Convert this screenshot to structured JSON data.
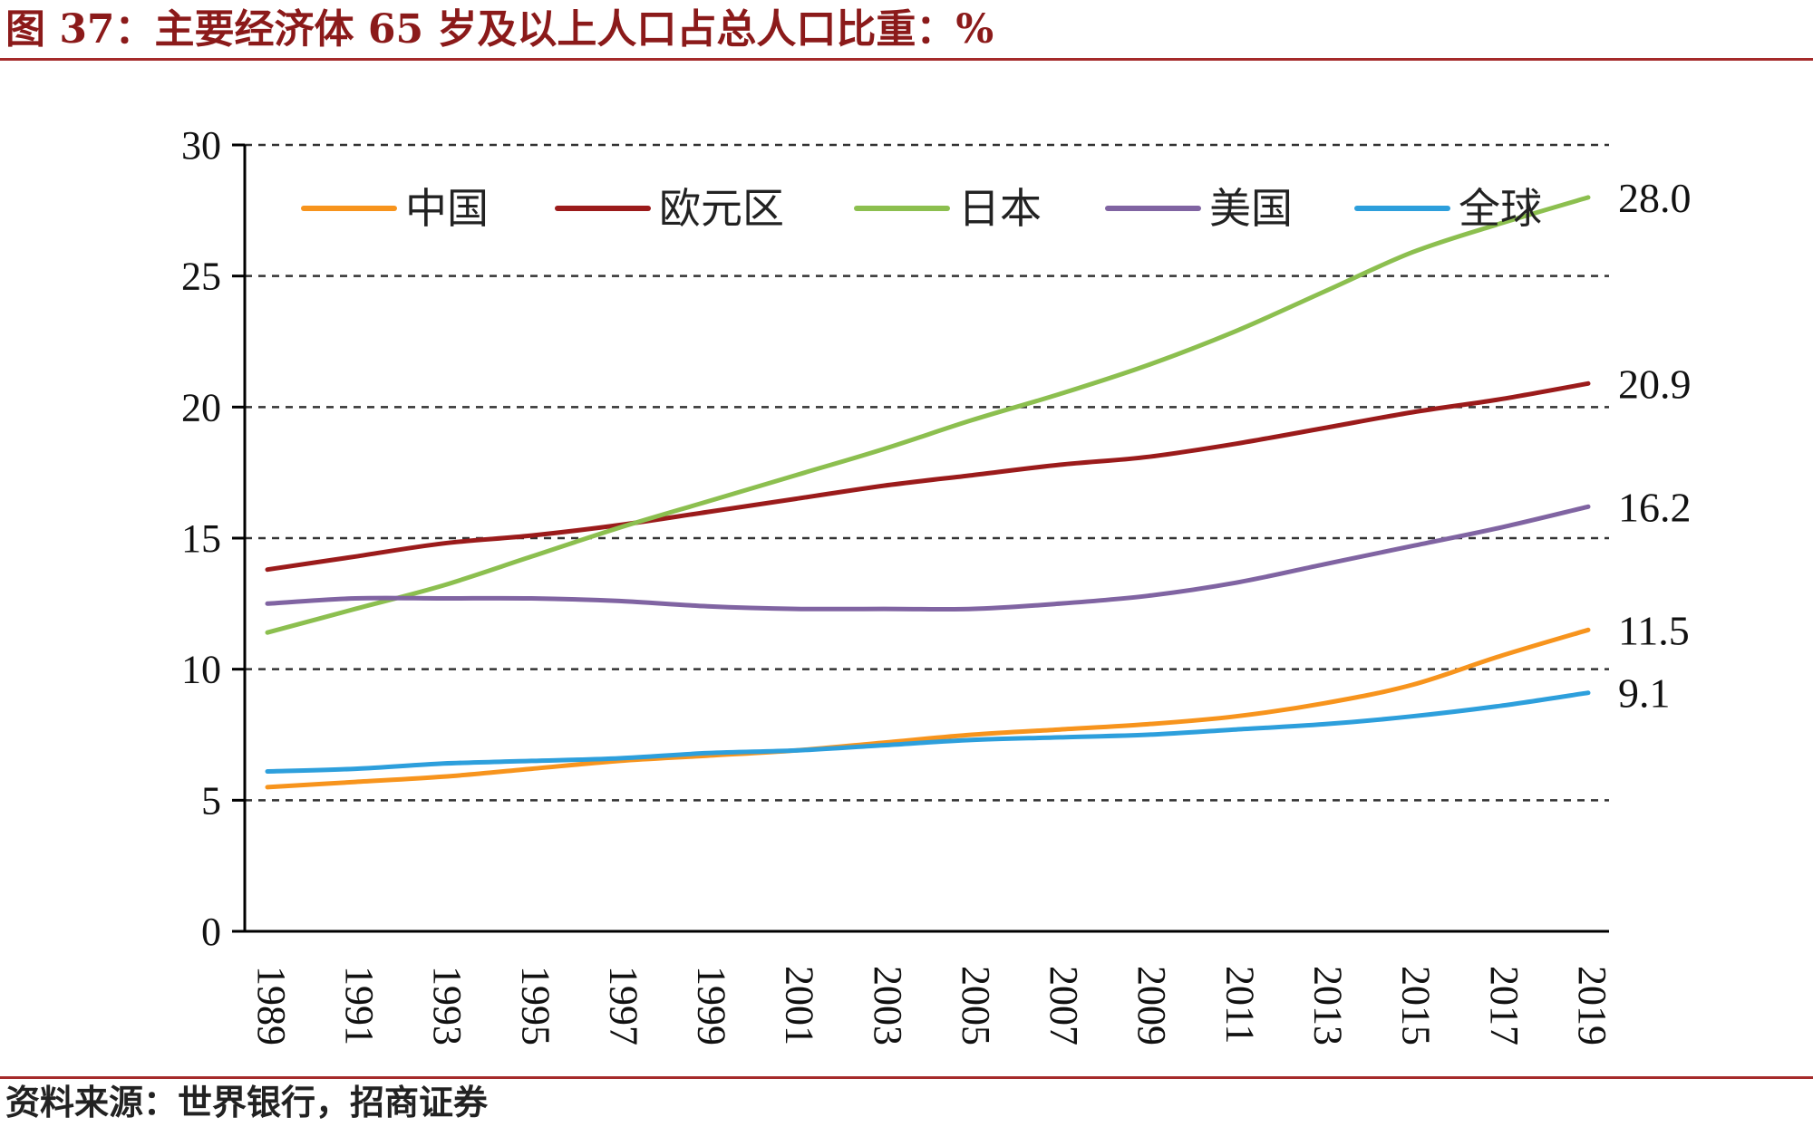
{
  "title": "图 37：主要经济体 65 岁及以上人口占总人口比重：%",
  "source": "资料来源：世界银行，招商证券",
  "chart_data": {
    "type": "line",
    "title": "图 37：主要经济体 65 岁及以上人口占总人口比重：%",
    "xlabel": "",
    "ylabel": "",
    "ylim": [
      0,
      30
    ],
    "y_ticks": [
      0,
      5,
      10,
      15,
      20,
      25,
      30
    ],
    "x_tick_labels": [
      "1989",
      "1991",
      "1993",
      "1995",
      "1997",
      "1999",
      "2001",
      "2003",
      "2005",
      "2007",
      "2009",
      "2011",
      "2013",
      "2015",
      "2017",
      "2019"
    ],
    "grid": true,
    "legend_position": "top",
    "x": [
      1989,
      1991,
      1993,
      1995,
      1997,
      1999,
      2001,
      2003,
      2005,
      2007,
      2009,
      2011,
      2013,
      2015,
      2017,
      2019
    ],
    "series": [
      {
        "name": "中国",
        "color": "#f7941d",
        "values": [
          5.5,
          5.7,
          5.9,
          6.2,
          6.5,
          6.7,
          6.9,
          7.2,
          7.5,
          7.7,
          7.9,
          8.2,
          8.7,
          9.4,
          10.5,
          11.5
        ],
        "end_label": "11.5"
      },
      {
        "name": "欧元区",
        "color": "#9b1b1b",
        "values": [
          13.8,
          14.3,
          14.8,
          15.1,
          15.5,
          16.0,
          16.5,
          17.0,
          17.4,
          17.8,
          18.1,
          18.6,
          19.2,
          19.8,
          20.3,
          20.9
        ],
        "end_label": "20.9"
      },
      {
        "name": "日本",
        "color": "#8cbf4f",
        "values": [
          11.4,
          12.3,
          13.2,
          14.3,
          15.4,
          16.4,
          17.4,
          18.4,
          19.5,
          20.5,
          21.6,
          22.9,
          24.4,
          25.9,
          27.0,
          28.0
        ],
        "end_label": "28.0"
      },
      {
        "name": "美国",
        "color": "#8064a2",
        "values": [
          12.5,
          12.7,
          12.7,
          12.7,
          12.6,
          12.4,
          12.3,
          12.3,
          12.3,
          12.5,
          12.8,
          13.3,
          14.0,
          14.7,
          15.4,
          16.2
        ],
        "end_label": "16.2"
      },
      {
        "name": "全球",
        "color": "#2d9fdc",
        "values": [
          6.1,
          6.2,
          6.4,
          6.5,
          6.6,
          6.8,
          6.9,
          7.1,
          7.3,
          7.4,
          7.5,
          7.7,
          7.9,
          8.2,
          8.6,
          9.1
        ],
        "end_label": "9.1"
      }
    ]
  }
}
